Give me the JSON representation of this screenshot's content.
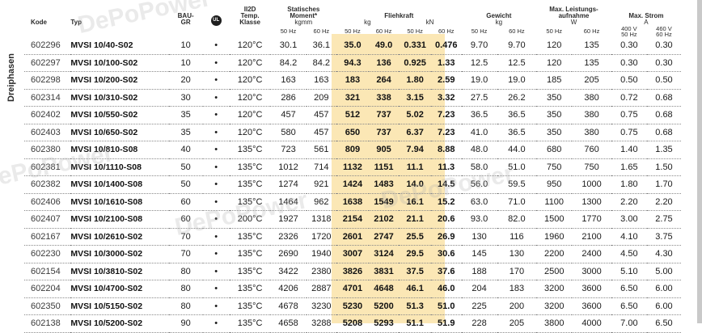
{
  "side_label": "Dreiphasen",
  "watermark": "DePoPower",
  "headers": {
    "kode": "Kode",
    "typ": "Typ",
    "bau": "BAU-\nGR",
    "cert": "UL",
    "ii2d": "II2D\nTemp.\nKlasse",
    "moment": "Statisches\nMoment*",
    "moment_unit": "kgmm",
    "fliehkraft": "Fliehkraft",
    "kg": "kg",
    "kn": "kN",
    "gewicht": "Gewicht",
    "gewicht_unit": "kg",
    "leistung": "Max. Leistungs-\naufnahme",
    "leistung_unit": "W",
    "strom": "Max. Strom",
    "strom_unit": "A",
    "hz50": "50 Hz",
    "hz60": "60 Hz",
    "v400": "400 V\n50 Hz",
    "v460": "460 V\n60 Hz"
  },
  "rows": [
    [
      "602296",
      "MVSI 10/40-S02",
      "10",
      "•",
      "120°C",
      "30.1",
      "36.1",
      "35.0",
      "49.0",
      "0.331",
      "0.476",
      "9.70",
      "9.70",
      "120",
      "135",
      "0.30",
      "0.30"
    ],
    [
      "602297",
      "MVSI 10/100-S02",
      "10",
      "•",
      "120°C",
      "84.2",
      "84.2",
      "94.3",
      "136",
      "0.925",
      "1.33",
      "12.5",
      "12.5",
      "120",
      "135",
      "0.30",
      "0.30"
    ],
    [
      "602298",
      "MVSI 10/200-S02",
      "20",
      "•",
      "120°C",
      "163",
      "163",
      "183",
      "264",
      "1.80",
      "2.59",
      "19.0",
      "19.0",
      "185",
      "205",
      "0.50",
      "0.50"
    ],
    [
      "602314",
      "MVSI 10/310-S02",
      "30",
      "•",
      "120°C",
      "286",
      "209",
      "321",
      "338",
      "3.15",
      "3.32",
      "27.5",
      "26.2",
      "350",
      "380",
      "0.72",
      "0.68"
    ],
    [
      "602402",
      "MVSI 10/550-S02",
      "35",
      "•",
      "120°C",
      "457",
      "457",
      "512",
      "737",
      "5.02",
      "7.23",
      "36.5",
      "36.5",
      "350",
      "380",
      "0.75",
      "0.68"
    ],
    [
      "602403",
      "MVSI 10/650-S02",
      "35",
      "•",
      "120°C",
      "580",
      "457",
      "650",
      "737",
      "6.37",
      "7.23",
      "41.0",
      "36.5",
      "350",
      "380",
      "0.75",
      "0.68"
    ],
    [
      "602380",
      "MVSI 10/810-S08",
      "40",
      "•",
      "135°C",
      "723",
      "561",
      "809",
      "905",
      "7.94",
      "8.88",
      "48.0",
      "44.0",
      "680",
      "760",
      "1.40",
      "1.35"
    ],
    [
      "602381",
      "MVSI 10/1110-S08",
      "50",
      "•",
      "135°C",
      "1012",
      "714",
      "1132",
      "1151",
      "11.1",
      "11.3",
      "58.0",
      "51.0",
      "750",
      "750",
      "1.65",
      "1.50"
    ],
    [
      "602382",
      "MVSI 10/1400-S08",
      "50",
      "•",
      "135°C",
      "1274",
      "921",
      "1424",
      "1483",
      "14.0",
      "14.5",
      "56.0",
      "59.5",
      "950",
      "1000",
      "1.80",
      "1.70"
    ],
    [
      "602406",
      "MVSI 10/1610-S08",
      "60",
      "•",
      "135°C",
      "1464",
      "962",
      "1638",
      "1549",
      "16.1",
      "15.2",
      "63.0",
      "71.0",
      "1100",
      "1300",
      "2.20",
      "2.20"
    ],
    [
      "602407",
      "MVSI 10/2100-S08",
      "60",
      "•",
      "200°C",
      "1927",
      "1318",
      "2154",
      "2102",
      "21.1",
      "20.6",
      "93.0",
      "82.0",
      "1500",
      "1770",
      "3.00",
      "2.75"
    ],
    [
      "602167",
      "MVSI 10/2610-S02",
      "70",
      "•",
      "135°C",
      "2326",
      "1720",
      "2601",
      "2747",
      "25.5",
      "26.9",
      "130",
      "116",
      "1960",
      "2100",
      "4.10",
      "3.75"
    ],
    [
      "602230",
      "MVSI 10/3000-S02",
      "70",
      "•",
      "135°C",
      "2690",
      "1940",
      "3007",
      "3124",
      "29.5",
      "30.6",
      "145",
      "130",
      "2200",
      "2400",
      "4.50",
      "4.30"
    ],
    [
      "602154",
      "MVSI 10/3810-S02",
      "80",
      "•",
      "135°C",
      "3422",
      "2380",
      "3826",
      "3831",
      "37.5",
      "37.6",
      "188",
      "170",
      "2500",
      "3000",
      "5.10",
      "5.00"
    ],
    [
      "602204",
      "MVSI 10/4700-S02",
      "80",
      "•",
      "135°C",
      "4206",
      "2887",
      "4701",
      "4648",
      "46.1",
      "46.0",
      "204",
      "183",
      "3200",
      "3600",
      "6.50",
      "6.00"
    ],
    [
      "602350",
      "MVSI 10/5150-S02",
      "80",
      "•",
      "135°C",
      "4678",
      "3230",
      "5230",
      "5200",
      "51.3",
      "51.0",
      "225",
      "200",
      "3200",
      "3600",
      "6.50",
      "6.00"
    ],
    [
      "602138",
      "MVSI 10/5200-S02",
      "90",
      "•",
      "135°C",
      "4658",
      "3288",
      "5208",
      "5293",
      "51.1",
      "51.9",
      "228",
      "205",
      "3800",
      "4000",
      "7.00",
      "6.50"
    ]
  ]
}
